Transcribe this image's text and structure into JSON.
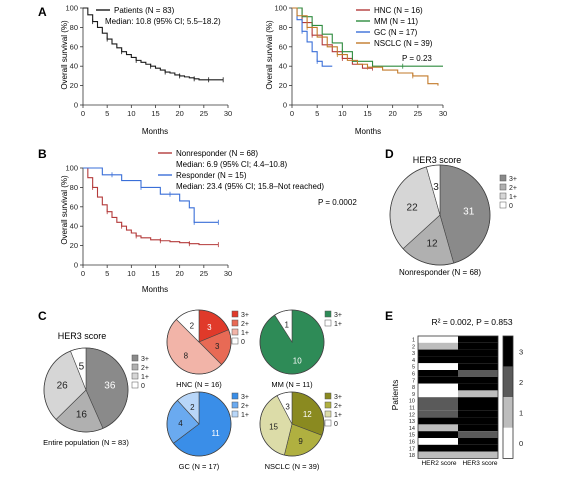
{
  "panel_letters": {
    "A": "A",
    "B": "B",
    "C": "C",
    "D": "D",
    "E": "E"
  },
  "colors": {
    "black": "#1a1a1a",
    "hnc": "#b43a3a",
    "mm": "#2e8b3e",
    "gc": "#3a6fd8",
    "nsclc": "#c27a2a",
    "nonresponder": "#b43a3a",
    "responder": "#3a6fd8",
    "grey_3": "#8a8a8a",
    "grey_2": "#b0b0b0",
    "grey_1": "#d6d6d6",
    "grey_0": "#ffffff",
    "hnc_3": "#e03a2a",
    "hnc_2": "#e86a55",
    "hnc_1": "#f2b4a8",
    "hnc_0": "#ffffff",
    "mm_3": "#2e8b57",
    "mm_1": "#ffffff",
    "gc_3": "#3a8ee8",
    "gc_2": "#6aaaf0",
    "gc_1": "#b8d6f8",
    "gc_0": "#ffffff",
    "nsclc_3": "#8a8a20",
    "nsclc_2": "#b0b040",
    "nsclc_1": "#dcdca8",
    "nsclc_0": "#ffffff"
  },
  "chart_data": [
    {
      "id": "A1",
      "type": "line",
      "step": true,
      "xlabel": "Months",
      "ylabel": "Overall survival (%)",
      "xlim": [
        0,
        30
      ],
      "ylim": [
        0,
        100
      ],
      "xticks": [
        "0",
        "5",
        "10",
        "15",
        "20",
        "25",
        "30"
      ],
      "yticks": [
        "0",
        "20",
        "40",
        "60",
        "80",
        "100"
      ],
      "series": [
        {
          "name": "Patients (N = 83)",
          "color": "#1a1a1a",
          "x": [
            0,
            1,
            2,
            3,
            4,
            5,
            6,
            7,
            8,
            9,
            10,
            11,
            12,
            13,
            14,
            15,
            16,
            17,
            18,
            19,
            20,
            21,
            22,
            23,
            24,
            25,
            26,
            27,
            28,
            29
          ],
          "y": [
            100,
            93,
            86,
            80,
            74,
            68,
            63,
            59,
            55,
            52,
            49,
            46,
            44,
            42,
            40,
            38,
            36,
            34,
            33,
            31,
            30,
            29,
            28,
            27,
            26,
            26,
            26,
            26,
            26,
            26
          ]
        }
      ],
      "annotation": "Median: 10.8 (95% CI; 5.5–18.2)"
    },
    {
      "id": "A2",
      "type": "line",
      "step": true,
      "xlabel": "Months",
      "ylabel": "Overall survival (%)",
      "xlim": [
        0,
        30
      ],
      "ylim": [
        0,
        100
      ],
      "xticks": [
        "0",
        "5",
        "10",
        "15",
        "20",
        "25",
        "30"
      ],
      "yticks": [
        "0",
        "20",
        "40",
        "60",
        "80",
        "100"
      ],
      "series": [
        {
          "name": "HNC (N = 16)",
          "color": "#b43a3a",
          "x": [
            0,
            2,
            4,
            6,
            8,
            10,
            12,
            14,
            16
          ],
          "y": [
            100,
            85,
            72,
            62,
            55,
            48,
            42,
            38,
            38
          ]
        },
        {
          "name": "MM (N = 11)",
          "color": "#2e8b3e",
          "x": [
            0,
            2,
            4,
            6,
            8,
            10,
            12,
            16,
            22,
            30
          ],
          "y": [
            100,
            91,
            82,
            73,
            64,
            55,
            45,
            40,
            40,
            40
          ]
        },
        {
          "name": "GC (N = 17)",
          "color": "#3a6fd8",
          "x": [
            0,
            1,
            2,
            3,
            4,
            5,
            6,
            8
          ],
          "y": [
            100,
            88,
            76,
            65,
            55,
            45,
            40,
            40
          ]
        },
        {
          "name": "NSCLC (N = 39)",
          "color": "#c27a2a",
          "x": [
            0,
            1,
            3,
            5,
            7,
            9,
            11,
            13,
            15,
            18,
            21,
            24,
            27,
            29
          ],
          "y": [
            100,
            92,
            80,
            70,
            60,
            52,
            46,
            42,
            39,
            36,
            33,
            30,
            22,
            20
          ]
        }
      ],
      "annotation": "P = 0.23"
    },
    {
      "id": "B",
      "type": "line",
      "step": true,
      "xlabel": "Months",
      "ylabel": "Overall survival (%)",
      "xlim": [
        0,
        30
      ],
      "ylim": [
        0,
        100
      ],
      "xticks": [
        "0",
        "5",
        "10",
        "15",
        "20",
        "25",
        "30"
      ],
      "yticks": [
        "0",
        "20",
        "40",
        "60",
        "80",
        "100"
      ],
      "series": [
        {
          "name": "Nonresponder (N = 68)",
          "color": "#b43a3a",
          "x": [
            0,
            1,
            2,
            3,
            4,
            5,
            6,
            7,
            8,
            9,
            10,
            11,
            12,
            14,
            16,
            18,
            20,
            22,
            24,
            26,
            28
          ],
          "y": [
            100,
            90,
            80,
            70,
            62,
            55,
            49,
            44,
            40,
            36,
            33,
            30,
            28,
            26,
            25,
            24,
            23,
            22,
            21,
            21,
            21
          ]
        },
        {
          "name": "Responder (N = 15)",
          "color": "#3a6fd8",
          "x": [
            0,
            4,
            6,
            8,
            10,
            12,
            14,
            16,
            18,
            20,
            22,
            23,
            25,
            27,
            28
          ],
          "y": [
            100,
            93,
            93,
            87,
            87,
            80,
            80,
            73,
            73,
            66,
            59,
            44,
            44,
            44,
            44
          ]
        }
      ],
      "annotation_lines": [
        "Median: 6.9 (95% CI; 4.4–10.8)",
        "Median: 23.4 (95% CI; 15.8–Not reached)"
      ],
      "annotation": "P = 0.0002"
    },
    {
      "id": "C_entire",
      "type": "pie",
      "title": "HER3 score",
      "caption": "Entire population (N = 83)",
      "slices": [
        {
          "label": "3+",
          "value": 36
        },
        {
          "label": "2+",
          "value": 16
        },
        {
          "label": "1+",
          "value": 26
        },
        {
          "label": "0",
          "value": 5
        }
      ],
      "legend": [
        "3+",
        "2+",
        "1+",
        "0"
      ]
    },
    {
      "id": "C_HNC",
      "type": "pie",
      "caption": "HNC (N = 16)",
      "slices": [
        {
          "label": "3+",
          "value": 3
        },
        {
          "label": "2+",
          "value": 3
        },
        {
          "label": "1+",
          "value": 8
        },
        {
          "label": "0",
          "value": 2
        }
      ],
      "legend": [
        "3+",
        "2+",
        "1+",
        "0"
      ]
    },
    {
      "id": "C_MM",
      "type": "pie",
      "caption": "MM (N = 11)",
      "slices": [
        {
          "label": "3+",
          "value": 10
        },
        {
          "label": "1+",
          "value": 1
        }
      ],
      "legend": [
        "3+",
        "1+"
      ]
    },
    {
      "id": "C_GC",
      "type": "pie",
      "caption": "GC (N = 17)",
      "slices": [
        {
          "label": "3+",
          "value": 11
        },
        {
          "label": "2+",
          "value": 4
        },
        {
          "label": "1+",
          "value": 2
        }
      ],
      "legend": [
        "3+",
        "2+",
        "1+"
      ]
    },
    {
      "id": "C_NSCLC",
      "type": "pie",
      "caption": "NSCLC (N = 39)",
      "slices": [
        {
          "label": "3+",
          "value": 12
        },
        {
          "label": "2+",
          "value": 9
        },
        {
          "label": "1+",
          "value": 15
        },
        {
          "label": "0",
          "value": 3
        }
      ],
      "legend": [
        "3+",
        "2+",
        "1+",
        "0"
      ]
    },
    {
      "id": "D",
      "type": "pie",
      "title": "HER3 score",
      "caption": "Nonresponder (N = 68)",
      "slices": [
        {
          "label": "3+",
          "value": 31
        },
        {
          "label": "2+",
          "value": 12
        },
        {
          "label": "1+",
          "value": 22
        },
        {
          "label": "0",
          "value": 3
        }
      ],
      "legend": [
        "3+",
        "2+",
        "1+",
        "0"
      ]
    },
    {
      "id": "E",
      "type": "heatmap",
      "title": "R² = 0.002, P = 0.853",
      "ylabel": "Patients",
      "columns": [
        "HER2 score",
        "HER3 score"
      ],
      "rows": [
        "1",
        "2",
        "3",
        "4",
        "5",
        "6",
        "7",
        "8",
        "9",
        "10",
        "11",
        "12",
        "13",
        "14",
        "15",
        "16",
        "17",
        "18"
      ],
      "values": [
        [
          0,
          3
        ],
        [
          1,
          3
        ],
        [
          3,
          3
        ],
        [
          3,
          3
        ],
        [
          0,
          3
        ],
        [
          3,
          2
        ],
        [
          3,
          3
        ],
        [
          0,
          3
        ],
        [
          0,
          1
        ],
        [
          2,
          3
        ],
        [
          2,
          3
        ],
        [
          2,
          3
        ],
        [
          3,
          3
        ],
        [
          1,
          3
        ],
        [
          3,
          2
        ],
        [
          0,
          3
        ],
        [
          3,
          3
        ],
        [
          1,
          1
        ]
      ],
      "colorbar_ticks": [
        "3",
        "2",
        "1",
        "0"
      ]
    }
  ]
}
